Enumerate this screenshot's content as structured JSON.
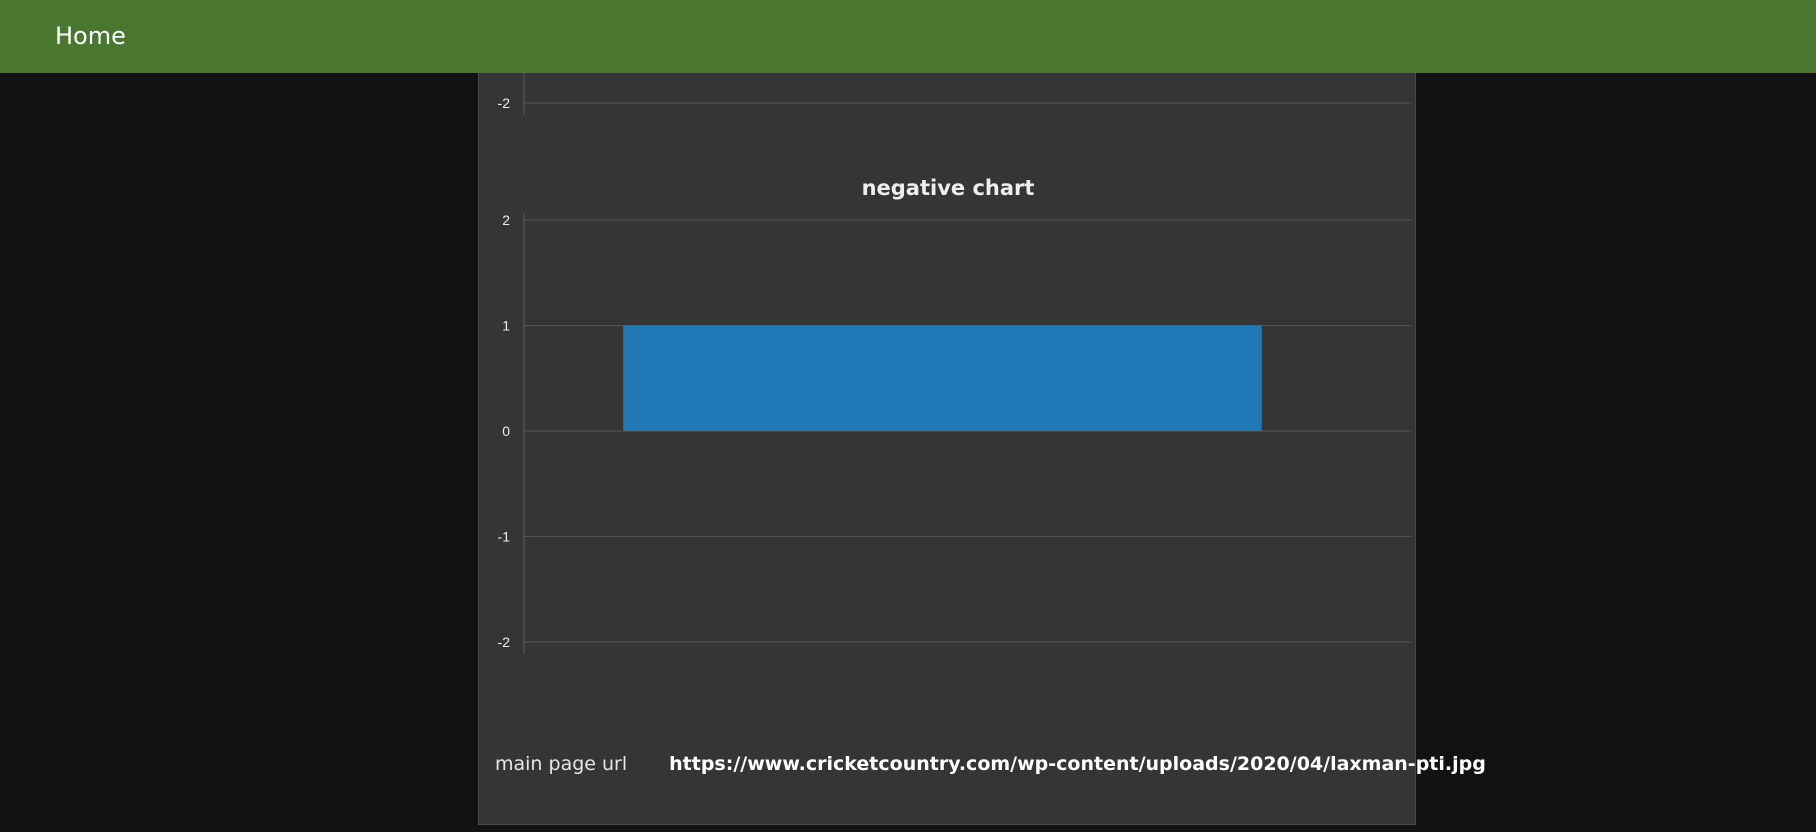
{
  "nav": {
    "home_label": "Home"
  },
  "upper_chart_partial": {
    "visible_tick_label": "-2"
  },
  "chart_data": {
    "type": "bar",
    "title": "negative chart",
    "categories": [
      ""
    ],
    "values": [
      1
    ],
    "xlabel": "",
    "ylabel": "",
    "ylim": [
      -2,
      2
    ],
    "yticks": [
      2,
      1,
      0,
      -1,
      -2
    ],
    "grid": true,
    "legend": "none",
    "bar_color": "#2178b7"
  },
  "footer": {
    "label": "main page url",
    "value": "https://www.cricketcountry.com/wp-content/uploads/2020/04/laxman-pti.jpg"
  },
  "colors": {
    "nav_bg": "#4a7730",
    "page_bg": "#121212",
    "card_bg": "#353535"
  }
}
